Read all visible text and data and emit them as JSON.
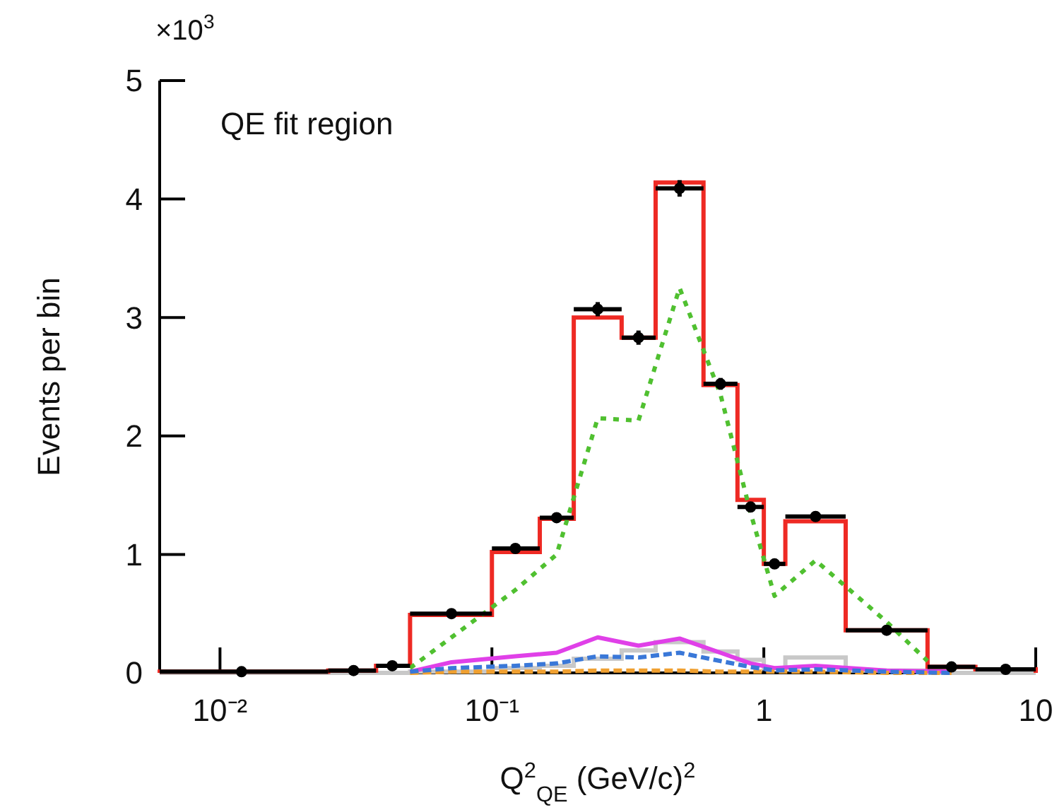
{
  "chart_data": {
    "type": "histogram",
    "xlabel": "Q$^{2}$$_{QE}$ (GeV/c)$^{2}$",
    "ylabel": "Events per bin",
    "annotations": [
      "×10$^{3}$",
      "QE fit region"
    ],
    "log": "x",
    "xlim": [
      0.006,
      10
    ],
    "xticks": [
      {
        "value": 0.01,
        "label": "10⁻²"
      },
      {
        "value": 0.1,
        "label": "10⁻¹"
      },
      1,
      10
    ],
    "ylim": [
      0,
      5
    ],
    "yticks": [
      0,
      1,
      2,
      3,
      4,
      5
    ],
    "bins": [
      0.006,
      0.025,
      0.0375,
      0.05,
      0.1,
      0.15,
      0.2,
      0.3,
      0.4,
      0.6,
      0.8,
      1.0,
      1.2,
      2.0,
      4.0,
      6.0,
      10
    ],
    "series": [
      {
        "type": "histogram",
        "color": "#c8c8c8",
        "values": [
          0,
          0,
          0,
          0.01,
          0.04,
          0.06,
          0.12,
          0.19,
          0.26,
          0.18,
          0.11,
          0.04,
          0.13,
          0.02,
          0,
          0
        ]
      },
      {
        "type": "line",
        "color": "#3a78d8",
        "line_style": "dashed",
        "x": [
          0.05,
          0.071,
          0.122,
          0.173,
          0.245,
          0.346,
          0.49,
          0.693,
          0.894,
          1.095,
          1.55,
          2.83,
          4.9
        ],
        "values": [
          0.01,
          0.04,
          0.06,
          0.08,
          0.14,
          0.13,
          0.17,
          0.1,
          0.05,
          0.02,
          0.03,
          0.01,
          0
        ]
      },
      {
        "type": "line",
        "color": "#f0a030",
        "line_style": "dashed",
        "x": [
          0.05,
          0.071,
          0.122,
          0.173,
          0.245,
          0.346,
          0.49,
          0.693,
          0.894,
          1.095,
          1.55,
          2.83,
          4.9
        ],
        "values": [
          0,
          0.01,
          0.01,
          0.01,
          0.02,
          0.02,
          0.02,
          0.01,
          0.01,
          0.01,
          0.01,
          0,
          0
        ]
      },
      {
        "type": "line",
        "color": "#e040e8",
        "line_style": "solid",
        "x": [
          0.05,
          0.071,
          0.122,
          0.173,
          0.245,
          0.346,
          0.49,
          0.693,
          0.894,
          1.095,
          1.55,
          2.83,
          4.9
        ],
        "values": [
          0.01,
          0.09,
          0.14,
          0.17,
          0.3,
          0.23,
          0.29,
          0.17,
          0.08,
          0.04,
          0.06,
          0.02,
          0.01
        ]
      },
      {
        "type": "line",
        "color": "#50c030",
        "line_style": "dotted",
        "x": [
          0.05,
          0.071,
          0.122,
          0.173,
          0.245,
          0.346,
          0.49,
          0.693,
          0.894,
          1.095,
          1.55,
          2.83,
          4.0
        ],
        "values": [
          0.04,
          0.3,
          0.7,
          1.0,
          2.15,
          2.13,
          3.25,
          2.35,
          1.35,
          0.65,
          0.95,
          0.43,
          0.1
        ]
      },
      {
        "color": "#ee2a24",
        "values": [
          0.01,
          0.02,
          0.06,
          0.49,
          1.02,
          1.3,
          3.0,
          2.83,
          4.14,
          2.43,
          1.46,
          0.92,
          1.28,
          0.36,
          0.05,
          0.03
        ]
      },
      {
        "type": "scatter",
        "color": "#000000",
        "marker": "circle",
        "x": [
          0.012,
          0.031,
          0.043,
          0.071,
          0.122,
          0.173,
          0.245,
          0.346,
          0.49,
          0.693,
          0.894,
          1.095,
          1.55,
          2.83,
          4.9,
          7.75
        ],
        "values": [
          0.01,
          0.02,
          0.06,
          0.5,
          1.05,
          1.31,
          3.07,
          2.83,
          4.09,
          2.44,
          1.4,
          0.92,
          1.32,
          0.36,
          0.05,
          0.03
        ],
        "errors": [
          0.01,
          0.01,
          0.02,
          0.03,
          0.04,
          0.04,
          0.06,
          0.06,
          0.07,
          0.05,
          0.04,
          0.03,
          0.04,
          0.02,
          0.01,
          0.01
        ],
        "xerrors": [
          [
            0.006,
            0.025
          ],
          [
            0.025,
            0.0375
          ],
          [
            0.0375,
            0.05
          ],
          [
            0.05,
            0.1
          ],
          [
            0.1,
            0.15
          ],
          [
            0.15,
            0.2
          ],
          [
            0.2,
            0.3
          ],
          [
            0.3,
            0.4
          ],
          [
            0.4,
            0.6
          ],
          [
            0.6,
            0.8
          ],
          [
            0.8,
            1.0
          ],
          [
            1.0,
            1.2
          ],
          [
            1.2,
            2.0
          ],
          [
            2.0,
            4.0
          ],
          [
            4.0,
            6.0
          ],
          [
            6.0,
            10
          ]
        ]
      }
    ]
  }
}
